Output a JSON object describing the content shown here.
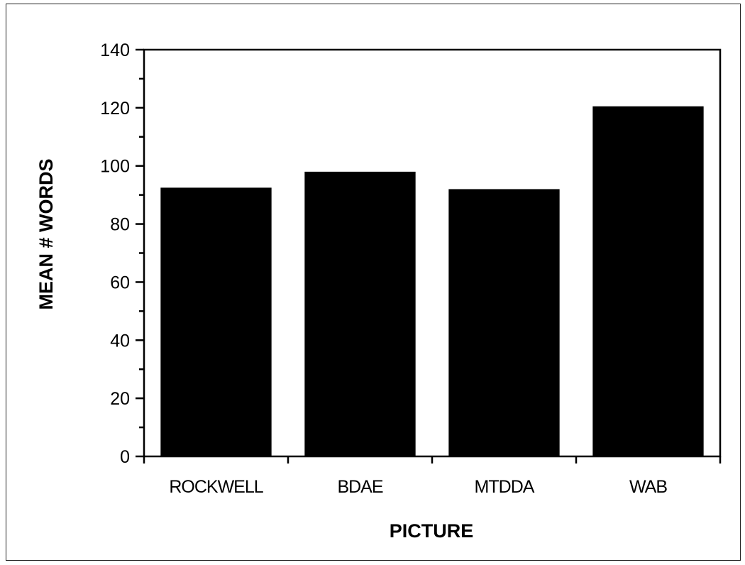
{
  "chart_data": {
    "type": "bar",
    "title": "",
    "xlabel": "PICTURE",
    "ylabel": "MEAN # WORDS",
    "categories": [
      "ROCKWELL",
      "BDAE",
      "MTDDA",
      "WAB"
    ],
    "values": [
      92.5,
      98,
      92,
      120.5
    ],
    "ylim": [
      0,
      140
    ],
    "yticks": [
      0,
      20,
      40,
      60,
      80,
      100,
      120,
      140
    ],
    "yticks_minor_step": 10,
    "grid": false,
    "legend": "none",
    "colors": {
      "bar": "#000000",
      "axis": "#000000",
      "background": "#ffffff"
    }
  }
}
